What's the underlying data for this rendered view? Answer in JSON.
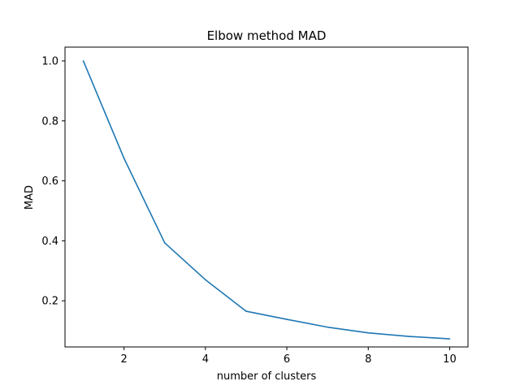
{
  "chart_data": {
    "type": "line",
    "title": "Elbow method MAD",
    "xlabel": "number of clusters",
    "ylabel": "MAD",
    "xlim": [
      0.55,
      10.45
    ],
    "ylim": [
      0.046,
      1.046
    ],
    "xticks": [
      2,
      4,
      6,
      8,
      10
    ],
    "yticks": [
      0.2,
      0.4,
      0.6,
      0.8,
      1.0
    ],
    "xtick_labels": [
      "2",
      "4",
      "6",
      "8",
      "10"
    ],
    "ytick_labels": [
      "0.2",
      "0.4",
      "0.6",
      "0.8",
      "1.0"
    ],
    "grid": false,
    "series": [
      {
        "color": "#1f77b4",
        "x": [
          1,
          2,
          3,
          4,
          5,
          6,
          7,
          8,
          9,
          10
        ],
        "y": [
          1.0,
          0.675,
          0.393,
          0.27,
          0.165,
          0.138,
          0.112,
          0.093,
          0.081,
          0.073
        ]
      }
    ]
  }
}
